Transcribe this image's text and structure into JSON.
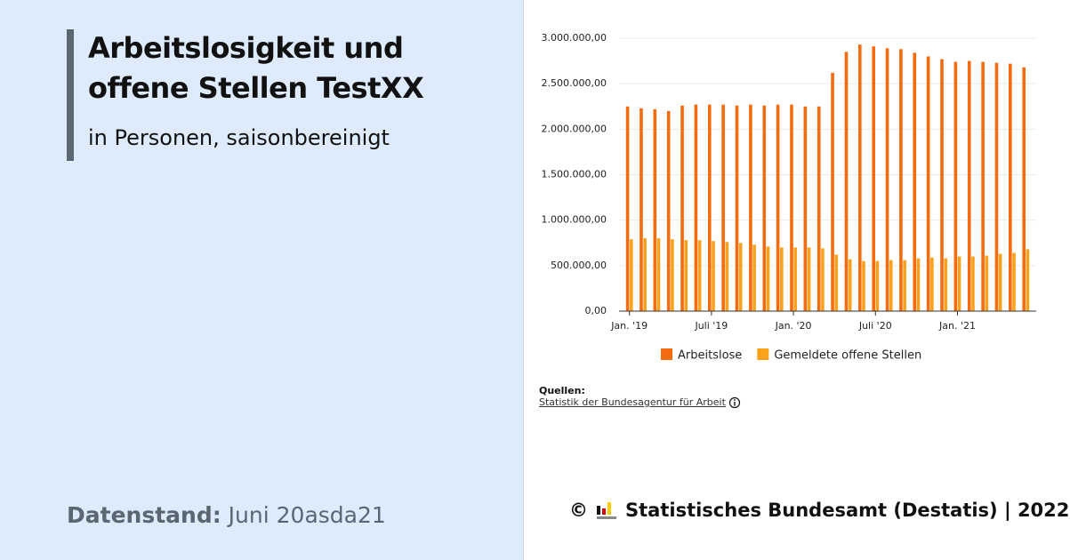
{
  "header": {
    "title": "Arbeitslosigkeit und offene Stellen TestXX",
    "subtitle": "in Personen, saisonbereinigt"
  },
  "stand": {
    "label": "Datenstand:",
    "value": "Juni 20asda21"
  },
  "sources": {
    "label": "Quellen:",
    "link": "Statistik der Bundesagentur für Arbeit"
  },
  "footer": {
    "copyright": "©",
    "text": "Statistisches Bundesamt (Destatis) | 2022"
  },
  "chart_data": {
    "type": "bar",
    "categories": [
      "Jan. '19",
      null,
      null,
      null,
      null,
      null,
      "Juli '19",
      null,
      null,
      null,
      null,
      null,
      "Jan. '20",
      null,
      null,
      null,
      null,
      null,
      "Juli '20",
      null,
      null,
      null,
      null,
      null,
      "Jan. '21",
      null,
      null,
      null,
      null,
      null
    ],
    "series": [
      {
        "name": "Arbeitslose",
        "color": "#f56b0f",
        "values": [
          2250000,
          2230000,
          2220000,
          2200000,
          2260000,
          2270000,
          2270000,
          2270000,
          2260000,
          2270000,
          2260000,
          2270000,
          2270000,
          2250000,
          2250000,
          2620000,
          2850000,
          2930000,
          2910000,
          2890000,
          2880000,
          2840000,
          2800000,
          2770000,
          2740000,
          2750000,
          2740000,
          2730000,
          2720000,
          2680000
        ]
      },
      {
        "name": "Gemeldete offene Stellen",
        "color": "#fba11b",
        "values": [
          790000,
          800000,
          800000,
          790000,
          780000,
          780000,
          770000,
          760000,
          750000,
          730000,
          710000,
          700000,
          700000,
          700000,
          690000,
          620000,
          570000,
          550000,
          550000,
          560000,
          560000,
          580000,
          590000,
          580000,
          600000,
          600000,
          610000,
          630000,
          640000,
          680000
        ]
      }
    ],
    "ylim": [
      0,
      3000000
    ],
    "yticks": [
      {
        "value": 0,
        "label": "0,00"
      },
      {
        "value": 500000,
        "label": "500.000,00"
      },
      {
        "value": 1000000,
        "label": "1.000.000,00"
      },
      {
        "value": 1500000,
        "label": "1.500.000,00"
      },
      {
        "value": 2000000,
        "label": "2.000.000,00"
      },
      {
        "value": 2500000,
        "label": "2.500.000,00"
      },
      {
        "value": 3000000,
        "label": "3.000.000,00"
      }
    ],
    "grid": true
  }
}
